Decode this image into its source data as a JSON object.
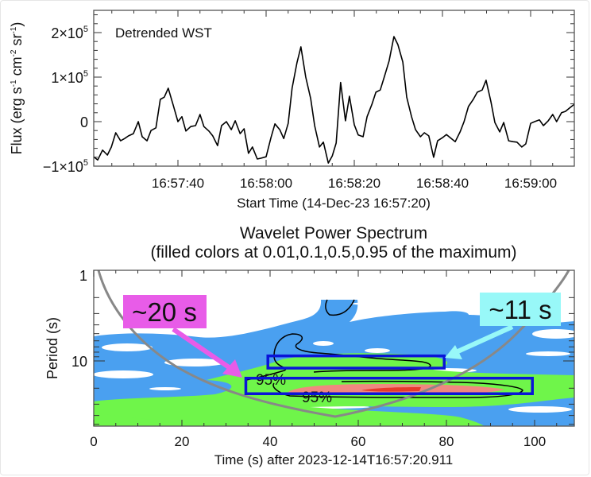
{
  "chart_data": [
    {
      "type": "line",
      "title": "",
      "annotation": "Detrended WST",
      "xlabel": "Start Time (14-Dec-23 16:57:20)",
      "ylabel_parts": {
        "main": "Flux (erg s",
        "s_exp": "-1",
        "cm": " cm",
        "cm_exp": "-2",
        "sr": " sr",
        "sr_exp": "-1",
        "close": ")"
      },
      "x_unit": "seconds after 16:57:20",
      "xlim": [
        0,
        109.9
      ],
      "ylim": [
        -100000,
        250000
      ],
      "x_ticks": [
        {
          "value": 20,
          "label": "16:57:40"
        },
        {
          "value": 40,
          "label": "16:58:00"
        },
        {
          "value": 60,
          "label": "16:58:20"
        },
        {
          "value": 80,
          "label": "16:58:40"
        },
        {
          "value": 100,
          "label": "16:59:00"
        }
      ],
      "y_ticks": [
        {
          "value": 200000,
          "mant": "2×10",
          "exp": "5"
        },
        {
          "value": 100000,
          "mant": "1×10",
          "exp": "5"
        },
        {
          "value": 0,
          "mant": "0",
          "exp": ""
        },
        {
          "value": -100000,
          "mant": "−1×10",
          "exp": "5"
        }
      ],
      "series": [
        {
          "name": "Detrended WST",
          "color": "#000000",
          "x": [
            0.9,
            1.8,
            2.9,
            4.0,
            4.9,
            5.9,
            7.0,
            7.9,
            8.8,
            9.9,
            11.0,
            11.9,
            13.0,
            13.9,
            15.0,
            16.0,
            16.9,
            17.8,
            18.9,
            20.0,
            20.9,
            21.8,
            22.9,
            24.0,
            25.0,
            25.9,
            27.0,
            27.9,
            29.0,
            29.9,
            31.0,
            32.1,
            33.0,
            34.1,
            35.0,
            36.0,
            36.9,
            38.0,
            38.9,
            40.0,
            41.1,
            42.0,
            43.1,
            44.0,
            45.0,
            45.9,
            47.0,
            47.9,
            49.0,
            50.1,
            51.0,
            52.1,
            53.0,
            54.1,
            55.0,
            55.9,
            56.9,
            58.0,
            58.9,
            60.0,
            60.9,
            62.0,
            62.9,
            64.0,
            64.9,
            65.9,
            66.8,
            67.9,
            69.0,
            69.9,
            71.0,
            71.9,
            73.0,
            73.9,
            75.0,
            75.9,
            76.9,
            78.0,
            78.9,
            80.0,
            80.9,
            82.0,
            82.9,
            84.0,
            84.9,
            85.9,
            87.0,
            87.9,
            89.0,
            89.9,
            91.0,
            91.9,
            93.0,
            93.9,
            95.0,
            96.0,
            96.9,
            98.0,
            98.9,
            100.0,
            100.9,
            102.0,
            102.9,
            104.0,
            105.0,
            105.9,
            107.0,
            107.9,
            109.0,
            109.9
          ],
          "y": [
            -79000,
            -86000,
            -64000,
            -75000,
            -57000,
            -25000,
            -43000,
            -38000,
            -32000,
            -27000,
            0,
            -34000,
            -43000,
            -20000,
            -14000,
            50000,
            55000,
            75000,
            38000,
            0,
            11000,
            -21000,
            -11000,
            -9000,
            16000,
            -11000,
            -21000,
            -32000,
            -54000,
            -9000,
            0,
            -18000,
            2000,
            -27000,
            -16000,
            -71000,
            -57000,
            -84000,
            -82000,
            -79000,
            -36000,
            -5000,
            -18000,
            -38000,
            -4000,
            75000,
            132000,
            168000,
            100000,
            52000,
            -9000,
            -57000,
            -46000,
            -93000,
            -77000,
            -48000,
            88000,
            2000,
            57000,
            -7000,
            -30000,
            -34000,
            11000,
            39000,
            66000,
            71000,
            100000,
            136000,
            191000,
            173000,
            134000,
            55000,
            11000,
            -18000,
            -34000,
            -25000,
            -32000,
            -80000,
            -43000,
            -36000,
            -29000,
            -38000,
            -45000,
            -23000,
            0,
            34000,
            50000,
            66000,
            71000,
            93000,
            45000,
            -2000,
            -23000,
            -2000,
            -43000,
            -45000,
            -46000,
            -57000,
            -50000,
            -4000,
            0,
            4000,
            -9000,
            2000,
            16000,
            0,
            20000,
            23000,
            32000,
            39000
          ]
        }
      ]
    },
    {
      "type": "heatmap",
      "title": "Wavelet Power Spectrum",
      "subtitle": "(filled colors at 0.01,0.1,0.5,0.95 of the maximum)",
      "xlabel": "Time (s) after 2023-12-14T16:57:20.911",
      "ylabel": "Period (s)",
      "xlim": [
        0,
        109
      ],
      "ylim": [
        1,
        52
      ],
      "y_scale": "log",
      "y_inverted": true,
      "x_ticks": [
        0,
        20,
        40,
        60,
        80,
        100
      ],
      "y_ticks": [
        1,
        10
      ],
      "levels": [
        {
          "fraction": 0.01,
          "color": "#4aa0f0"
        },
        {
          "fraction": 0.1,
          "color": "#6ff54a"
        },
        {
          "fraction": 0.5,
          "color": "#f08880"
        },
        {
          "fraction": 0.95,
          "color": "#e83a2c"
        }
      ],
      "significance_contour": {
        "label": "95%",
        "labels_shown": [
          "95%",
          "95%"
        ],
        "color": "#000000"
      },
      "cone_of_influence_color": "#888888",
      "highlight_boxes": [
        {
          "name": "upper",
          "t_range": [
            39.5,
            79.5
          ],
          "period_range": [
            8.8,
            12.0
          ],
          "color": "#0a14d8"
        },
        {
          "name": "lower",
          "t_range": [
            34.5,
            99.5
          ],
          "period_range": [
            15.5,
            23.0
          ],
          "color": "#0a14d8"
        }
      ],
      "callouts": [
        {
          "text": "~20 s",
          "bg": "#e85ce8",
          "points_to": "lower box"
        },
        {
          "text": "~11 s",
          "bg": "#98f8f8",
          "points_to": "upper box"
        }
      ]
    }
  ]
}
